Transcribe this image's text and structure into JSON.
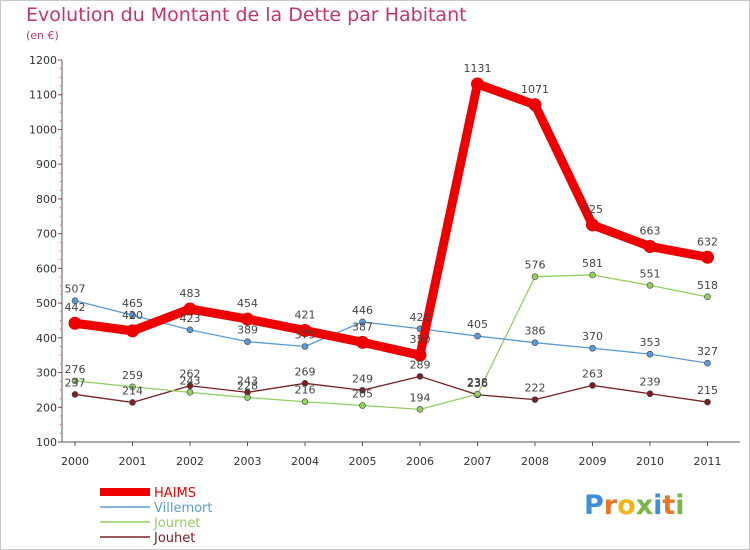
{
  "title": "Evolution du Montant de la Dette par Habitant",
  "subtitle": "(en €)",
  "logo": {
    "text": "Proxiti"
  },
  "chart_data": {
    "type": "line",
    "title": "Evolution du Montant de la Dette par Habitant",
    "ylabel": "(en €)",
    "xlabel": "",
    "x": [
      "2000",
      "2001",
      "2002",
      "2003",
      "2004",
      "2005",
      "2006",
      "2007",
      "2008",
      "2009",
      "2010",
      "2011"
    ],
    "ylim": [
      100,
      1200
    ],
    "yticks": [
      100,
      200,
      300,
      400,
      500,
      600,
      700,
      800,
      900,
      1000,
      1100,
      1200
    ],
    "grid": false,
    "legend_placement": "bottom-left",
    "series": [
      {
        "name": "HAIMS",
        "color": "#ee0000",
        "values": [
          442,
          420,
          483,
          454,
          421,
          387,
          350,
          1131,
          1071,
          725,
          663,
          632
        ]
      },
      {
        "name": "Villemort",
        "color": "#5b9bd5",
        "values": [
          507,
          465,
          423,
          389,
          375,
          446,
          426,
          405,
          386,
          370,
          353,
          327
        ]
      },
      {
        "name": "Journet",
        "color": "#90d060",
        "values": [
          276,
          259,
          243,
          228,
          216,
          205,
          194,
          238,
          576,
          581,
          551,
          518
        ]
      },
      {
        "name": "Jouhet",
        "color": "#7a2222",
        "values": [
          237,
          214,
          262,
          243,
          269,
          249,
          289,
          236,
          222,
          263,
          239,
          215
        ]
      }
    ]
  }
}
